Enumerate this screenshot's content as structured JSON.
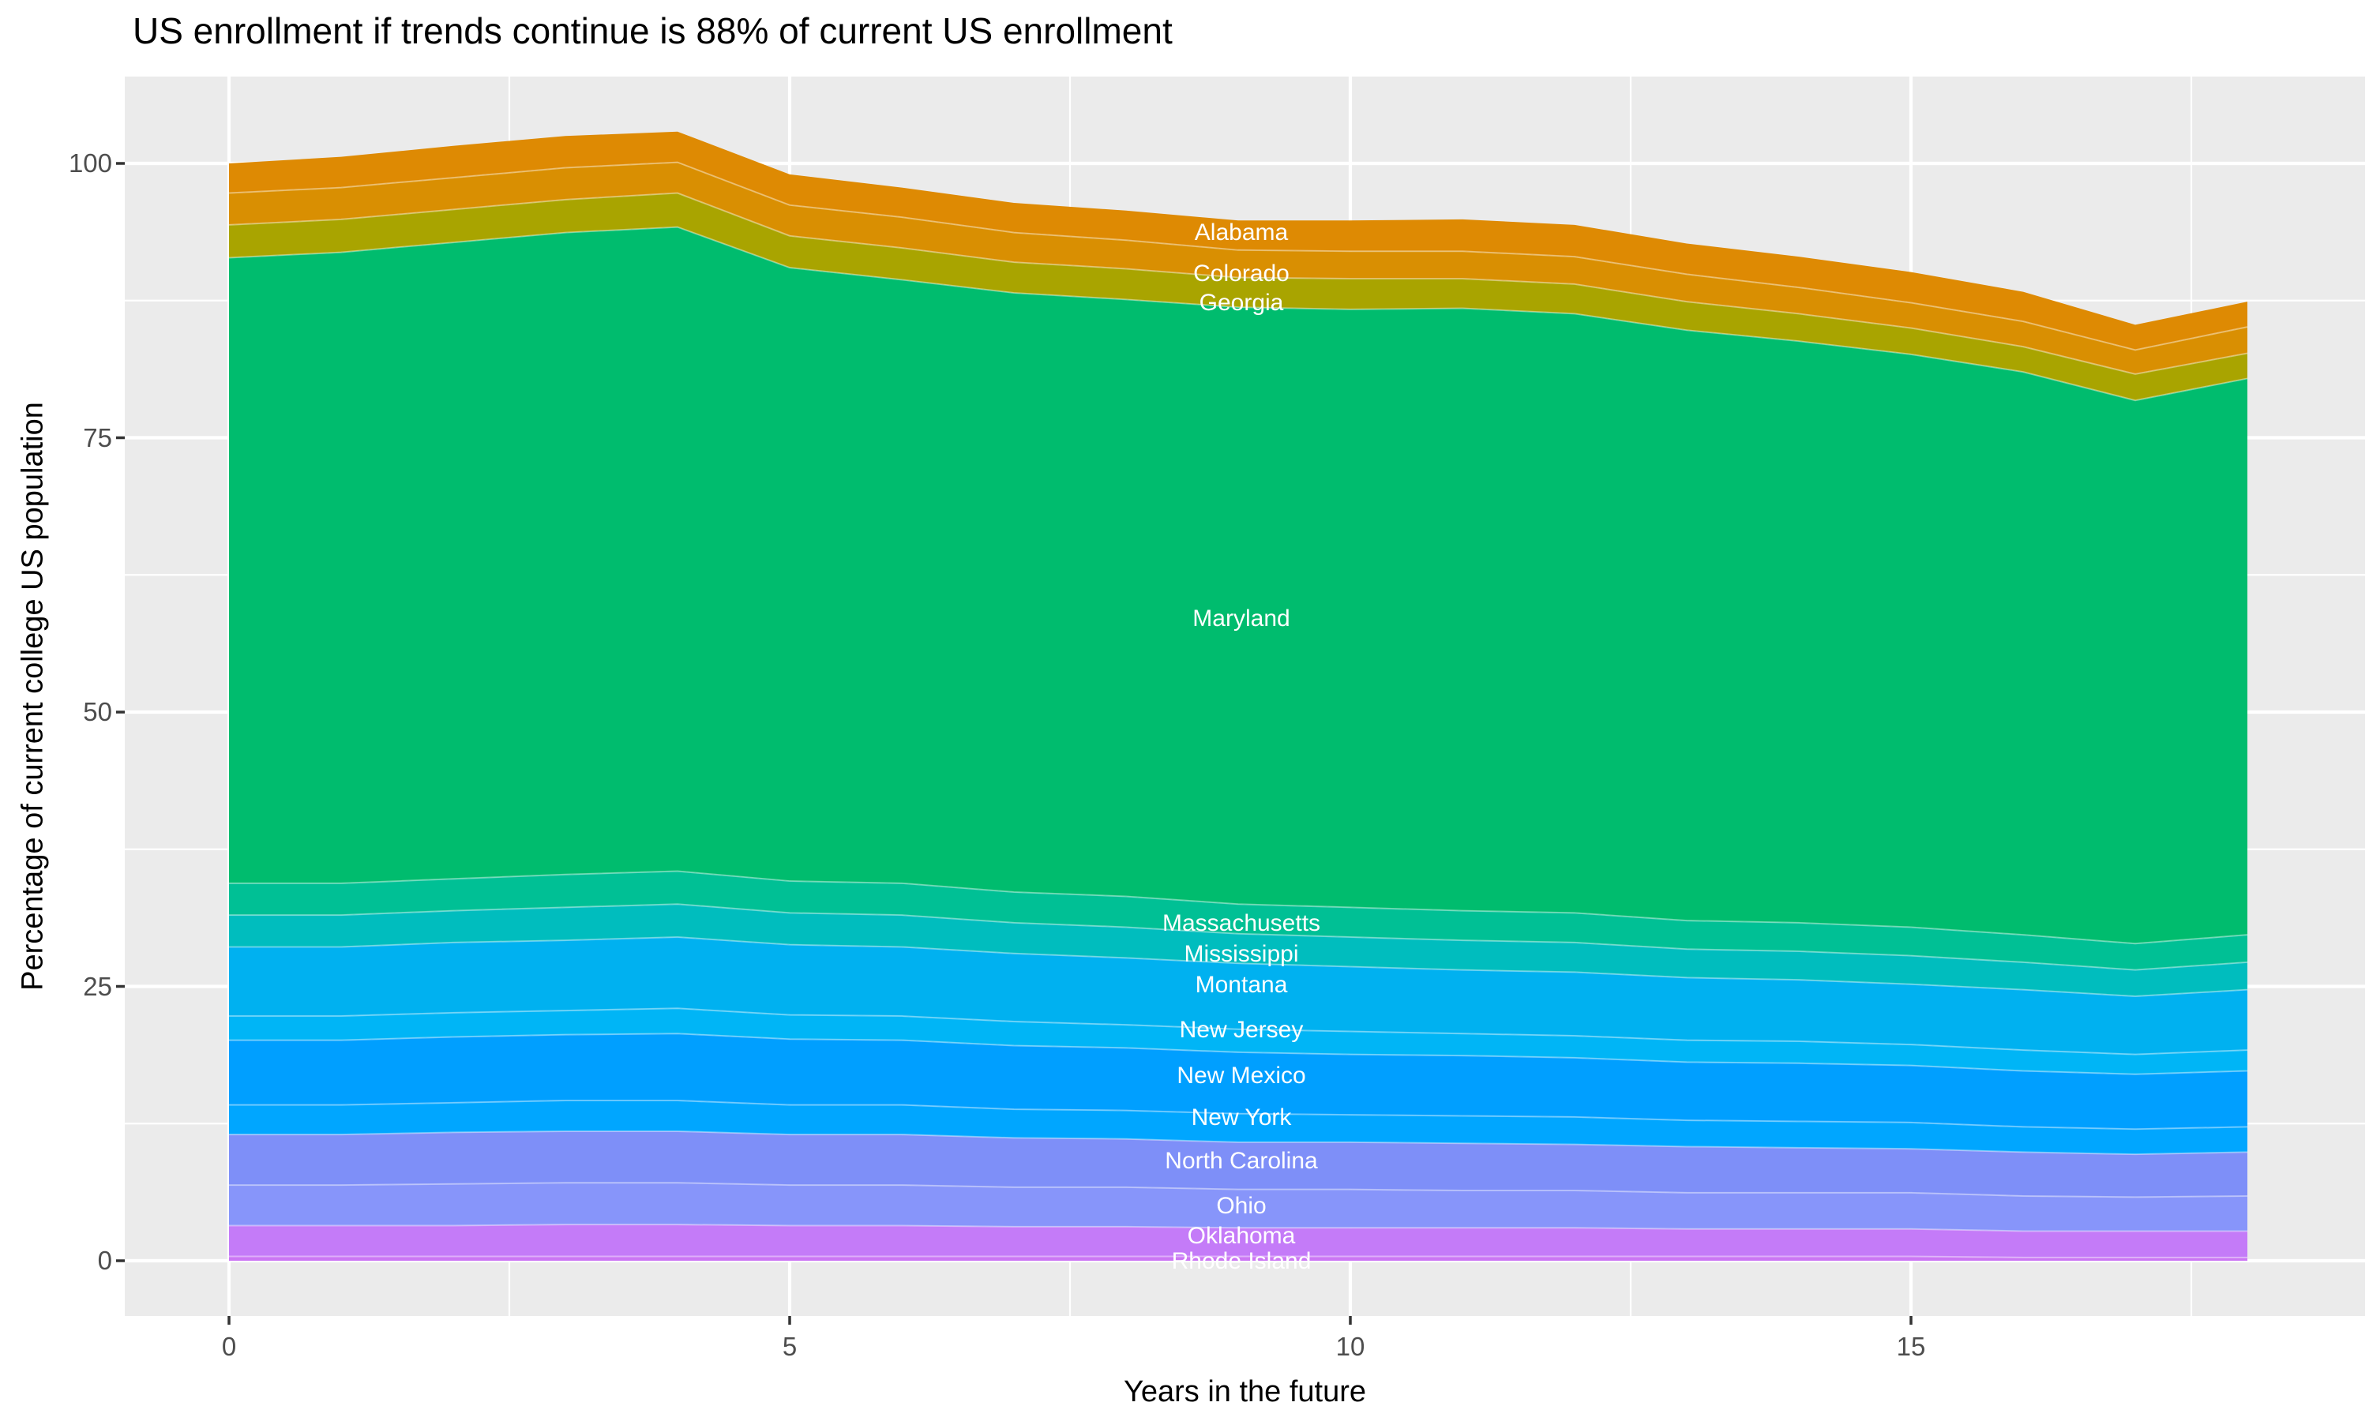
{
  "title": "US enrollment if trends continue is 88% of current US enrollment",
  "chart_data": {
    "type": "area",
    "stacked": true,
    "title": "US enrollment if trends continue is 88% of current US enrollment",
    "xlabel": "Years in the future",
    "ylabel": "Percentage of current college US population",
    "x": [
      0,
      1,
      2,
      3,
      4,
      5,
      6,
      7,
      8,
      9,
      10,
      11,
      12,
      13,
      14,
      15,
      16,
      17,
      18
    ],
    "x_ticks": [
      0,
      5,
      10,
      15
    ],
    "y_ticks": [
      0,
      25,
      50,
      75,
      100
    ],
    "xlim": [
      -0.93,
      19.05
    ],
    "ylim": [
      -5.0,
      107.9
    ],
    "grid": "white major and minor gridlines on grey panel",
    "panel_bg": "#EBEBEB",
    "grid_color": "#FFFFFF",
    "tick_mark_color": "#333333",
    "tick_label_color": "#4D4D4D",
    "area_label_color": "#FFFFFF",
    "legend_position": "none",
    "stack_order": "bottom to top",
    "series": [
      {
        "name": "Rhode Island",
        "color": "#CB76F3",
        "values": [
          0.4,
          0.4,
          0.4,
          0.4,
          0.4,
          0.4,
          0.4,
          0.4,
          0.4,
          0.4,
          0.4,
          0.4,
          0.4,
          0.4,
          0.4,
          0.4,
          0.3,
          0.3,
          0.3
        ]
      },
      {
        "name": "Oklahoma",
        "color": "#C47BF8",
        "values": [
          2.8,
          2.8,
          2.8,
          2.9,
          2.9,
          2.8,
          2.8,
          2.7,
          2.7,
          2.6,
          2.6,
          2.6,
          2.6,
          2.5,
          2.5,
          2.5,
          2.4,
          2.4,
          2.4
        ]
      },
      {
        "name": "Ohio",
        "color": "#8795FA",
        "values": [
          3.7,
          3.7,
          3.8,
          3.8,
          3.8,
          3.7,
          3.7,
          3.6,
          3.6,
          3.5,
          3.5,
          3.4,
          3.4,
          3.3,
          3.3,
          3.3,
          3.2,
          3.1,
          3.2
        ]
      },
      {
        "name": "North Carolina",
        "color": "#7E8FF8",
        "values": [
          4.6,
          4.6,
          4.7,
          4.7,
          4.7,
          4.6,
          4.6,
          4.5,
          4.4,
          4.3,
          4.3,
          4.3,
          4.2,
          4.2,
          4.1,
          4.0,
          4.0,
          3.9,
          4.0
        ]
      },
      {
        "name": "New York",
        "color": "#00A6FF",
        "values": [
          2.7,
          2.7,
          2.7,
          2.8,
          2.8,
          2.7,
          2.7,
          2.6,
          2.6,
          2.6,
          2.5,
          2.5,
          2.5,
          2.4,
          2.4,
          2.4,
          2.3,
          2.3,
          2.3
        ]
      },
      {
        "name": "New Mexico",
        "color": "#009FFF",
        "values": [
          5.9,
          5.9,
          6.0,
          6.0,
          6.1,
          6.0,
          5.9,
          5.8,
          5.7,
          5.6,
          5.5,
          5.5,
          5.4,
          5.3,
          5.3,
          5.2,
          5.1,
          5.0,
          5.1
        ]
      },
      {
        "name": "New Jersey",
        "color": "#00B5F6",
        "values": [
          2.2,
          2.2,
          2.2,
          2.2,
          2.3,
          2.2,
          2.2,
          2.2,
          2.1,
          2.1,
          2.1,
          2.0,
          2.0,
          2.0,
          2.0,
          1.9,
          1.9,
          1.8,
          1.9
        ]
      },
      {
        "name": "Montana",
        "color": "#00B1F0",
        "values": [
          6.3,
          6.3,
          6.4,
          6.4,
          6.5,
          6.4,
          6.3,
          6.2,
          6.1,
          6.0,
          5.9,
          5.8,
          5.8,
          5.7,
          5.6,
          5.5,
          5.5,
          5.3,
          5.5
        ]
      },
      {
        "name": "Mississippi",
        "color": "#00BDBE",
        "values": [
          2.9,
          2.9,
          2.9,
          3.0,
          3.0,
          2.9,
          2.9,
          2.8,
          2.8,
          2.7,
          2.7,
          2.7,
          2.7,
          2.6,
          2.6,
          2.6,
          2.5,
          2.4,
          2.5
        ]
      },
      {
        "name": "Massachusetts",
        "color": "#00C095",
        "values": [
          2.9,
          2.9,
          2.9,
          3.0,
          3.0,
          2.9,
          2.9,
          2.8,
          2.8,
          2.7,
          2.7,
          2.7,
          2.7,
          2.6,
          2.6,
          2.6,
          2.5,
          2.4,
          2.5
        ]
      },
      {
        "name": "Maryland",
        "color": "#00BC6E",
        "values": [
          57.0,
          57.5,
          58.0,
          58.5,
          58.7,
          55.9,
          55.0,
          54.6,
          54.4,
          54.4,
          54.5,
          54.9,
          54.6,
          53.8,
          53.0,
          52.2,
          51.3,
          49.5,
          50.7
        ]
      },
      {
        "name": "Georgia",
        "color": "#A9A400",
        "values": [
          3.0,
          3.0,
          3.0,
          3.0,
          3.1,
          2.9,
          2.9,
          2.8,
          2.8,
          2.7,
          2.8,
          2.7,
          2.7,
          2.6,
          2.5,
          2.4,
          2.3,
          2.4,
          2.3
        ]
      },
      {
        "name": "Colorado",
        "color": "#D98F02",
        "values": [
          2.9,
          2.9,
          2.9,
          2.9,
          2.8,
          2.8,
          2.8,
          2.7,
          2.6,
          2.5,
          2.5,
          2.5,
          2.5,
          2.5,
          2.4,
          2.3,
          2.3,
          2.2,
          2.4
        ]
      },
      {
        "name": "Alabama",
        "color": "#DE8A03",
        "values": [
          2.7,
          2.8,
          2.9,
          2.9,
          2.8,
          2.8,
          2.7,
          2.7,
          2.7,
          2.7,
          2.8,
          2.9,
          2.9,
          2.8,
          2.8,
          2.8,
          2.7,
          2.3,
          2.3
        ]
      }
    ],
    "area_labels": [
      {
        "text": "Alabama",
        "y_pct": 93.7
      },
      {
        "text": "Colorado",
        "y_pct": 89.9
      },
      {
        "text": "Georgia",
        "y_pct": 87.3
      },
      {
        "text": "Maryland",
        "y_pct": 58.5
      },
      {
        "text": "Massachusetts",
        "y_pct": 30.7
      },
      {
        "text": "Mississippi",
        "y_pct": 27.9
      },
      {
        "text": "Montana",
        "y_pct": 25.1
      },
      {
        "text": "New Jersey",
        "y_pct": 21.0
      },
      {
        "text": "New Mexico",
        "y_pct": 16.8
      },
      {
        "text": "New York",
        "y_pct": 13.0
      },
      {
        "text": "North Carolina",
        "y_pct": 9.1
      },
      {
        "text": "Ohio",
        "y_pct": 5.0
      },
      {
        "text": "Oklahoma",
        "y_pct": 2.2
      },
      {
        "text": "Rhode Island",
        "y_pct": -0.1
      }
    ]
  }
}
